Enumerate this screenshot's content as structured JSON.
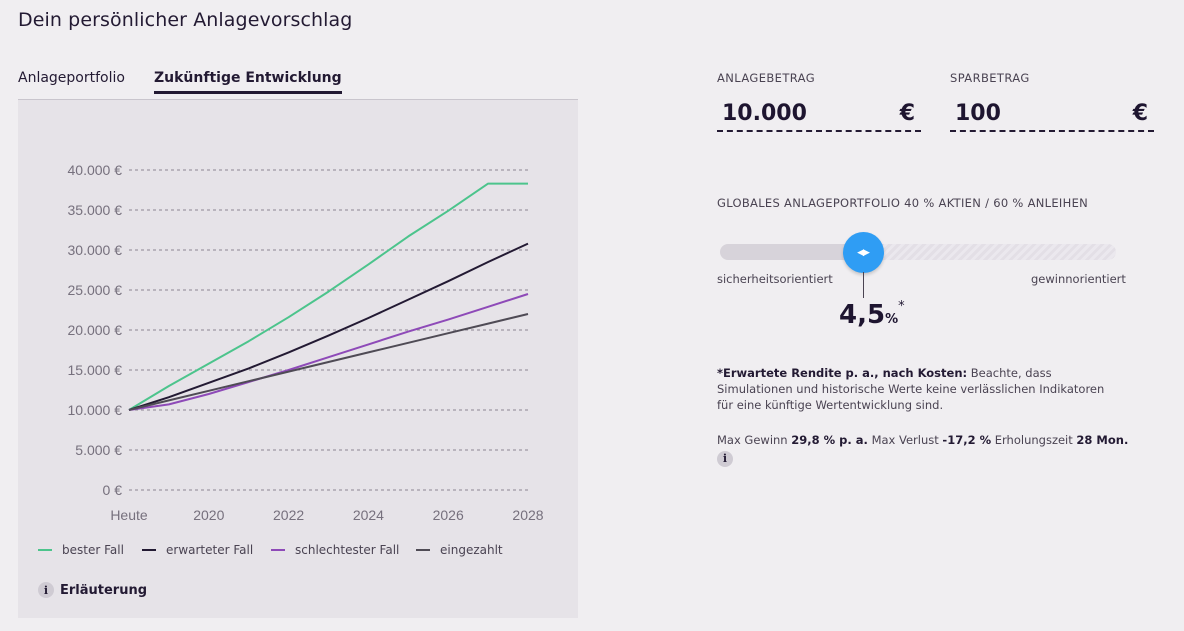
{
  "page": {
    "title": "Dein persönlicher Anlagevorschlag"
  },
  "tabs": [
    {
      "label": "Anlageportfolio",
      "active": false
    },
    {
      "label": "Zukünftige Entwicklung",
      "active": true
    }
  ],
  "chart_data": {
    "type": "line",
    "title": "",
    "xlabel": "",
    "ylabel": "",
    "x_ticks": [
      "Heute",
      "2020",
      "2022",
      "2024",
      "2026",
      "2028"
    ],
    "y_ticks": [
      "0 €",
      "5.000 €",
      "10.000 €",
      "15.000 €",
      "20.000 €",
      "25.000 €",
      "30.000 €",
      "35.000 €",
      "40.000 €"
    ],
    "ylim": [
      0,
      40000
    ],
    "x": [
      0,
      1,
      2,
      3,
      4,
      5,
      6,
      7,
      8,
      9,
      10
    ],
    "grid": "horizontal dashed",
    "legend_position": "bottom",
    "series": [
      {
        "name": "bester Fall",
        "color": "#4cc48c",
        "values": [
          10000,
          13000,
          15800,
          18600,
          21600,
          24800,
          28200,
          31700,
          34900,
          38300,
          38300
        ]
      },
      {
        "name": "erwarteter Fall",
        "color": "#231a33",
        "values": [
          10000,
          11600,
          13400,
          15200,
          17200,
          19300,
          21500,
          23800,
          26100,
          28500,
          30800
        ]
      },
      {
        "name": "schlechtester Fall",
        "color": "#8e4ab8",
        "values": [
          10000,
          10700,
          12000,
          13500,
          15000,
          16600,
          18200,
          19800,
          21300,
          22900,
          24500
        ]
      },
      {
        "name": "eingezahlt",
        "color": "#4f4b55",
        "values": [
          10000,
          11200,
          12400,
          13600,
          14800,
          16000,
          17200,
          18400,
          19600,
          20800,
          22000
        ]
      }
    ]
  },
  "explanation_label": "Erläuterung",
  "fields": {
    "anlagebetrag": {
      "label": "ANLAGEBETRAG",
      "value": "10.000",
      "unit": "€"
    },
    "sparbetrag": {
      "label": "SPARBETRAG",
      "value": "100",
      "unit": "€"
    }
  },
  "portfolio": {
    "label": "GLOBALES ANLAGEPORTFOLIO 40 % AKTIEN / 60 % ANLEIHEN",
    "slider_min_label": "sicherheitsorientiert",
    "slider_max_label": "gewinnorientiert",
    "slider_level": 0.36,
    "return_value": "4,5",
    "return_unit": "%",
    "return_marker": "*"
  },
  "note": {
    "head": "*Erwartete Rendite p. a., nach Kosten:",
    "text": " Beachte, dass Simulationen und historische Werte keine verlässlichen Indikatoren für eine künftige Wertentwicklung sind."
  },
  "stats": {
    "gain_label": "Max Gewinn",
    "gain_value": "29,8 % p. a.",
    "loss_label": "Max Verlust",
    "loss_value": "-17,2 %",
    "recovery_label": "Erholungszeit",
    "recovery_value": "28 Mon."
  },
  "icons": {
    "info": "info-icon",
    "slider": "slider-arrows-icon"
  },
  "colors": {
    "accent": "#2f9df4",
    "text": "#231a33",
    "background": "#f0eef1",
    "panel": "#e6e3e8"
  }
}
